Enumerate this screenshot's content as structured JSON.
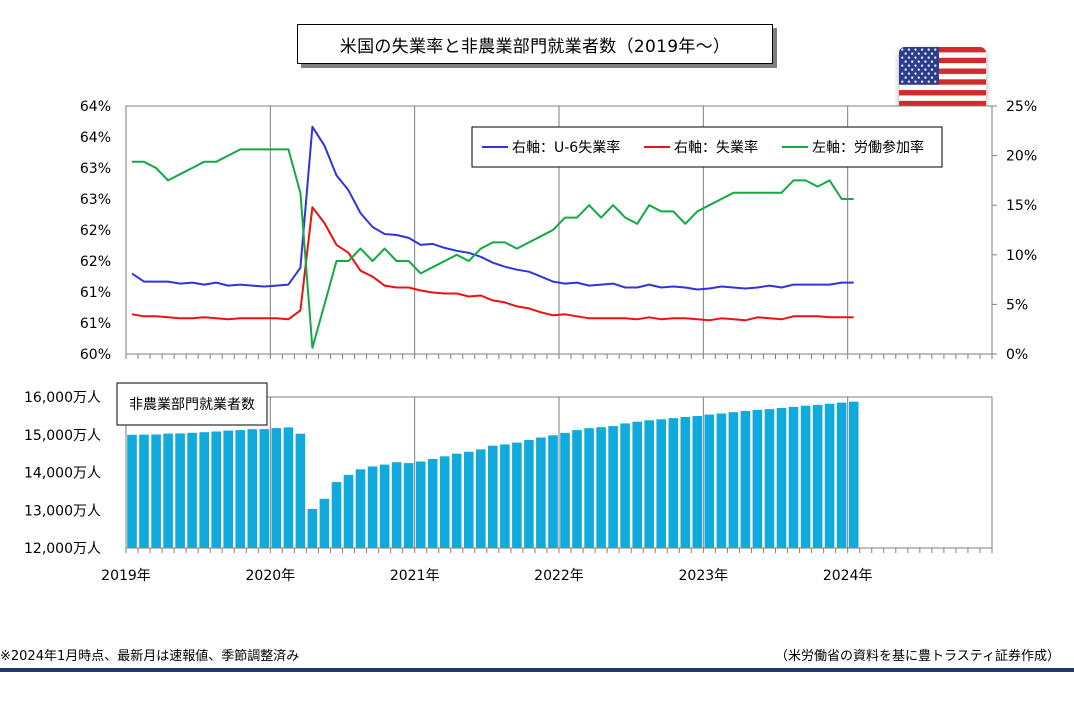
{
  "title": "米国の失業率と非農業部門就業者数（2019年～）",
  "footnote": "※2024年1月時点、最新月は速報値、季節調整済み",
  "source": "（米労働省の資料を基に豊トラスティ証券作成）",
  "colors": {
    "u6": "#3333dd",
    "unemployment": "#ee1111",
    "participation": "#11aa44",
    "bars": "#11aadd",
    "rule": "#1f3864"
  },
  "chart_data": [
    {
      "type": "line",
      "title": "",
      "x_labels": [
        "2019年",
        "2020年",
        "2021年",
        "2022年",
        "2023年",
        "2024年"
      ],
      "x_start": "2019-01",
      "months_on_axis": 72,
      "left_axis": {
        "ticks": [
          "60%",
          "61%",
          "61%",
          "62%",
          "62%",
          "63%",
          "63%",
          "64%",
          "64%"
        ],
        "ylim": [
          60,
          64
        ]
      },
      "right_axis": {
        "ticks": [
          "0%",
          "5%",
          "10%",
          "15%",
          "20%",
          "25%"
        ],
        "ylim": [
          0,
          25
        ]
      },
      "legend": {
        "placement": "top-right"
      },
      "grid": {
        "vertical": true,
        "horizontal": false
      },
      "series": [
        {
          "name": "右軸：U-6失業率",
          "axis": "right",
          "values": [
            8.1,
            7.3,
            7.3,
            7.3,
            7.1,
            7.2,
            7.0,
            7.2,
            6.9,
            7.0,
            6.9,
            6.8,
            6.9,
            7.0,
            8.7,
            22.9,
            21.0,
            18.0,
            16.5,
            14.2,
            12.8,
            12.1,
            12.0,
            11.7,
            11.0,
            11.1,
            10.7,
            10.4,
            10.2,
            9.8,
            9.2,
            8.8,
            8.5,
            8.3,
            7.8,
            7.3,
            7.1,
            7.2,
            6.9,
            7.0,
            7.1,
            6.7,
            6.7,
            7.0,
            6.7,
            6.8,
            6.7,
            6.5,
            6.6,
            6.8,
            6.7,
            6.6,
            6.7,
            6.9,
            6.7,
            7.0,
            7.0,
            7.0,
            7.0,
            7.2,
            7.2
          ]
        },
        {
          "name": "右軸：失業率",
          "axis": "right",
          "values": [
            4.0,
            3.8,
            3.8,
            3.7,
            3.6,
            3.6,
            3.7,
            3.6,
            3.5,
            3.6,
            3.6,
            3.6,
            3.6,
            3.5,
            4.4,
            14.8,
            13.2,
            11.0,
            10.2,
            8.4,
            7.8,
            6.9,
            6.7,
            6.7,
            6.4,
            6.2,
            6.1,
            6.1,
            5.8,
            5.9,
            5.4,
            5.2,
            4.8,
            4.6,
            4.2,
            3.9,
            4.0,
            3.8,
            3.6,
            3.6,
            3.6,
            3.6,
            3.5,
            3.7,
            3.5,
            3.6,
            3.6,
            3.5,
            3.4,
            3.6,
            3.5,
            3.4,
            3.7,
            3.6,
            3.5,
            3.8,
            3.8,
            3.8,
            3.7,
            3.7,
            3.7
          ]
        },
        {
          "name": "左軸：労働参加率",
          "axis": "left",
          "values": [
            63.1,
            63.1,
            63.0,
            62.8,
            62.9,
            63.0,
            63.1,
            63.1,
            63.2,
            63.3,
            63.3,
            63.3,
            63.3,
            63.3,
            62.6,
            60.1,
            60.8,
            61.5,
            61.5,
            61.7,
            61.5,
            61.7,
            61.5,
            61.5,
            61.3,
            61.4,
            61.5,
            61.6,
            61.5,
            61.7,
            61.8,
            61.8,
            61.7,
            61.8,
            61.9,
            62.0,
            62.2,
            62.2,
            62.4,
            62.2,
            62.4,
            62.2,
            62.1,
            62.4,
            62.3,
            62.3,
            62.1,
            62.3,
            62.4,
            62.5,
            62.6,
            62.6,
            62.6,
            62.6,
            62.6,
            62.8,
            62.8,
            62.7,
            62.8,
            62.5,
            62.5
          ]
        }
      ]
    },
    {
      "type": "bar",
      "title": "非農業部門就業者数",
      "x_labels": [
        "2019年",
        "2020年",
        "2021年",
        "2022年",
        "2023年",
        "2024年"
      ],
      "x_start": "2019-01",
      "months_on_axis": 72,
      "y_axis": {
        "ticks": [
          "12,000万人",
          "13,000万人",
          "14,000万人",
          "15,000万人",
          "16,000万人"
        ],
        "ylim": [
          12000,
          16000
        ]
      },
      "unit": "万人",
      "values": [
        15000,
        15004,
        15007,
        15030,
        15037,
        15052,
        15067,
        15087,
        15109,
        15124,
        15146,
        15149,
        15177,
        15196,
        15027,
        13033,
        13302,
        13747,
        13937,
        14084,
        14160,
        14210,
        14273,
        14249,
        14291,
        14358,
        14428,
        14497,
        14549,
        14611,
        14711,
        14744,
        14793,
        14861,
        14928,
        14986,
        15049,
        15124,
        15173,
        15199,
        15230,
        15300,
        15347,
        15383,
        15409,
        15441,
        15471,
        15496,
        15533,
        15563,
        15598,
        15630,
        15657,
        15680,
        15708,
        15739,
        15769,
        15791,
        15823,
        15852,
        15876
      ]
    }
  ]
}
